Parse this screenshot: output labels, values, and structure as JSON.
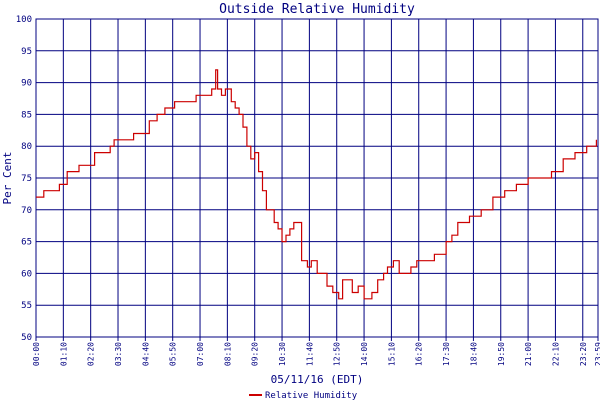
{
  "chart_data": {
    "type": "line",
    "title": "Outside Relative Humidity",
    "xlabel": "05/11/16 (EDT)",
    "ylabel": "Per Cent",
    "ylim": [
      50,
      100
    ],
    "yticks": [
      50,
      55,
      60,
      65,
      70,
      75,
      80,
      85,
      90,
      95,
      100
    ],
    "xlim": [
      "00:00",
      "23:59"
    ],
    "xtick_labels": [
      "00:00",
      "01:10",
      "02:20",
      "03:30",
      "04:40",
      "05:50",
      "07:00",
      "08:10",
      "09:20",
      "10:30",
      "11:40",
      "12:50",
      "14:00",
      "15:10",
      "16:20",
      "17:30",
      "18:40",
      "19:50",
      "21:00",
      "22:10",
      "23:20",
      "23:59"
    ],
    "grid": true,
    "legend": "bottom-center",
    "colors": {
      "series": "#cc0000",
      "grid": "#000080",
      "text": "#000080"
    },
    "series": [
      {
        "name": "Relative Humidity",
        "x": [
          "00:00",
          "00:20",
          "01:00",
          "01:20",
          "01:50",
          "02:30",
          "03:10",
          "03:20",
          "03:35",
          "04:10",
          "04:50",
          "05:10",
          "05:30",
          "05:55",
          "06:30",
          "06:50",
          "07:10",
          "07:20",
          "07:30",
          "07:40",
          "07:45",
          "07:55",
          "08:05",
          "08:20",
          "08:30",
          "08:40",
          "08:50",
          "09:00",
          "09:10",
          "09:20",
          "09:30",
          "09:40",
          "09:50",
          "10:00",
          "10:10",
          "10:20",
          "10:30",
          "10:40",
          "10:50",
          "11:00",
          "11:20",
          "11:35",
          "11:45",
          "12:00",
          "12:10",
          "12:25",
          "12:40",
          "12:55",
          "13:05",
          "13:15",
          "13:30",
          "13:45",
          "14:00",
          "14:10",
          "14:20",
          "14:35",
          "14:50",
          "15:00",
          "15:15",
          "15:30",
          "15:45",
          "16:00",
          "16:15",
          "16:30",
          "16:45",
          "17:00",
          "17:15",
          "17:30",
          "17:45",
          "18:00",
          "18:30",
          "19:00",
          "19:30",
          "20:00",
          "20:30",
          "21:00",
          "21:30",
          "22:00",
          "22:30",
          "23:00",
          "23:30",
          "23:55"
        ],
        "values": [
          72,
          73,
          74,
          76,
          77,
          79,
          80,
          81,
          81,
          82,
          84,
          85,
          86,
          87,
          87,
          88,
          88,
          88,
          89,
          92,
          89,
          88,
          89,
          87,
          86,
          85,
          83,
          80,
          78,
          79,
          76,
          73,
          70,
          70,
          68,
          67,
          65,
          66,
          67,
          68,
          62,
          61,
          62,
          60,
          60,
          58,
          57,
          56,
          59,
          59,
          57,
          58,
          56,
          56,
          57,
          59,
          60,
          61,
          62,
          60,
          60,
          61,
          62,
          62,
          62,
          63,
          63,
          65,
          66,
          68,
          69,
          70,
          72,
          73,
          74,
          75,
          75,
          76,
          78,
          79,
          80,
          81
        ]
      }
    ]
  }
}
